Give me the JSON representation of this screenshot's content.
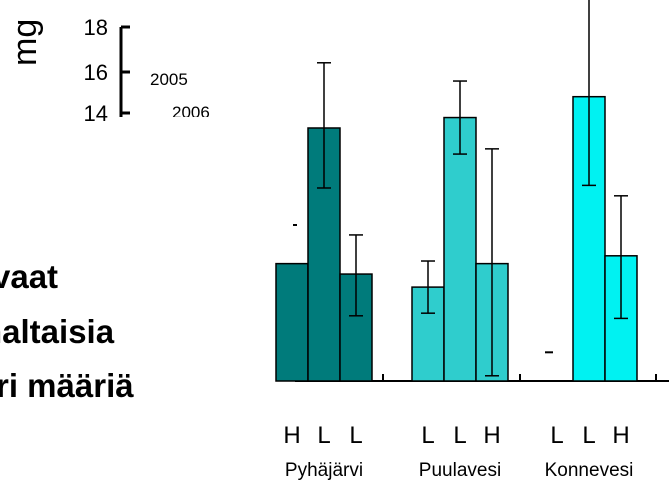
{
  "ylabel": "mg",
  "inset_axis": {
    "ticks": [
      "18",
      "16",
      "14"
    ],
    "legend": [
      "2005",
      "2006"
    ]
  },
  "text_lines": [
    "vaat",
    "naltaisia",
    "ri määriä"
  ],
  "colors": {
    "pyhajarvi": "#007b7b",
    "puulavesi": "#2fcdcd",
    "konnevesi": "#00f2f2",
    "outline": "#000000"
  },
  "chart_data": {
    "type": "bar",
    "xlabel": "",
    "ylabel": "mg",
    "ylim": [
      0,
      12
    ],
    "error_bars": true,
    "groups": [
      {
        "name": "Pyhäjärvi",
        "color": "#007b7b",
        "bars": [
          {
            "label": "H",
            "value": 4.5,
            "err_low": 0,
            "err_high": 0
          },
          {
            "label": "L",
            "value": 9.7,
            "err_low": 2.3,
            "err_high": 2.5
          },
          {
            "label": "L",
            "value": 4.1,
            "err_low": 1.6,
            "err_high": 1.5
          }
        ]
      },
      {
        "name": "Puulavesi",
        "color": "#2fcdcd",
        "bars": [
          {
            "label": "L",
            "value": 3.6,
            "err_low": 1.0,
            "err_high": 1.0
          },
          {
            "label": "L",
            "value": 10.1,
            "err_low": 1.4,
            "err_high": 1.4
          },
          {
            "label": "H",
            "value": 4.5,
            "err_low": 4.3,
            "err_high": 4.4
          }
        ]
      },
      {
        "name": "Konnevesi",
        "color": "#00f2f2",
        "bars": [
          {
            "label": "L",
            "value": 1.1,
            "err_low": 0,
            "err_high": 0
          },
          {
            "label": "L",
            "value": 10.9,
            "err_low": 3.4,
            "err_high": 4.1
          },
          {
            "label": "H",
            "value": 4.8,
            "err_low": 2.4,
            "err_high": 2.3
          }
        ]
      }
    ]
  }
}
